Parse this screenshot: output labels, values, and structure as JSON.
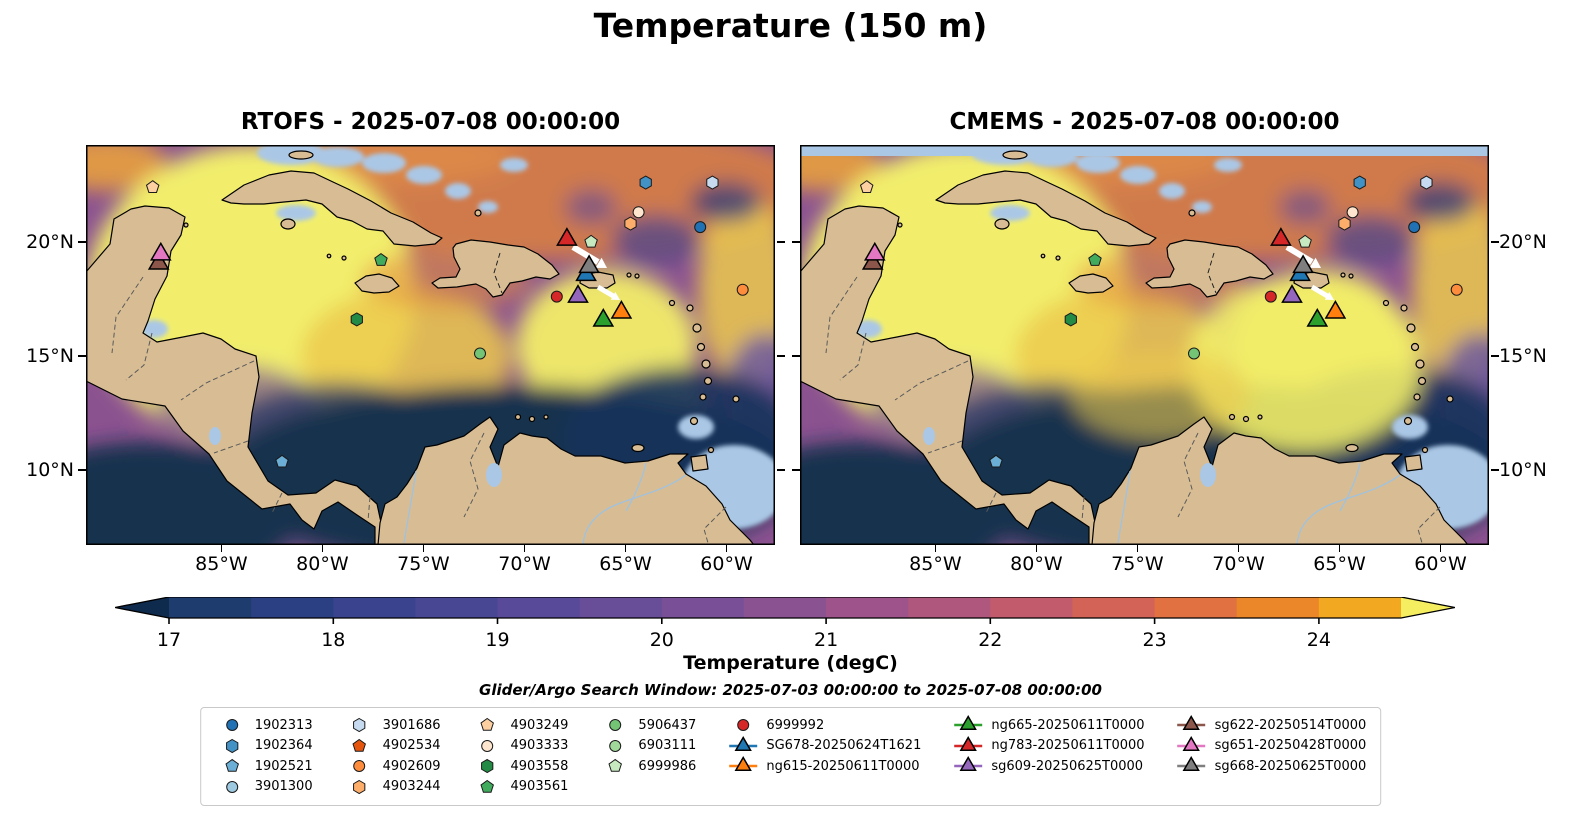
{
  "figure": {
    "title": "Temperature (150 m)",
    "colorbar_label": "Temperature (degC)",
    "search_window": "Glider/Argo Search Window: 2025-07-03 00:00:00 to 2025-07-08 00:00:00"
  },
  "panels": [
    {
      "id": "rtofs",
      "title": "RTOFS - 2025-07-08 00:00:00",
      "ytick_side": "left"
    },
    {
      "id": "cmems",
      "title": "CMEMS - 2025-07-08 00:00:00",
      "ytick_side": "right"
    }
  ],
  "map_extent": {
    "lon_min": -91.7,
    "lon_max": -57.6,
    "lat_min": 6.7,
    "lat_max": 24.25
  },
  "axes": {
    "x_ticks": [
      {
        "label": "85°W",
        "lon": -85
      },
      {
        "label": "80°W",
        "lon": -80
      },
      {
        "label": "75°W",
        "lon": -75
      },
      {
        "label": "70°W",
        "lon": -70
      },
      {
        "label": "65°W",
        "lon": -65
      },
      {
        "label": "60°W",
        "lon": -60
      }
    ],
    "y_ticks": [
      {
        "label": "20°N",
        "lat": 20
      },
      {
        "label": "15°N",
        "lat": 15
      },
      {
        "label": "10°N",
        "lat": 10
      }
    ]
  },
  "colorbar": {
    "vmin": 17,
    "vmax": 24.5,
    "ticks": [
      17,
      18,
      19,
      20,
      21,
      22,
      23,
      24
    ],
    "band_colors": [
      "#1e3d6e",
      "#2a4083",
      "#39438e",
      "#484794",
      "#584a98",
      "#684d99",
      "#795097",
      "#8b5292",
      "#9e548a",
      "#b0577d",
      "#c25c6c",
      "#d36357",
      "#e17141",
      "#ec8729",
      "#f2a821"
    ],
    "extend_left_color": "#0e2a4d",
    "extend_right_color": "#f5ee61"
  },
  "platforms": {
    "1902313": {
      "label": "1902313",
      "shape": "circle",
      "color": "#2171b5"
    },
    "1902364": {
      "label": "1902364",
      "shape": "hexagon",
      "color": "#4292c6"
    },
    "1902521": {
      "label": "1902521",
      "shape": "pentagon",
      "color": "#6baed6"
    },
    "3901300": {
      "label": "3901300",
      "shape": "circle",
      "color": "#9ecae1"
    },
    "3901686": {
      "label": "3901686",
      "shape": "hexagon",
      "color": "#c6dbef"
    },
    "4902534": {
      "label": "4902534",
      "shape": "pentagon",
      "color": "#e6550d"
    },
    "4902609": {
      "label": "4902609",
      "shape": "circle",
      "color": "#fd8d3c"
    },
    "4903244": {
      "label": "4903244",
      "shape": "hexagon",
      "color": "#fdae6b"
    },
    "4903249": {
      "label": "4903249",
      "shape": "pentagon",
      "color": "#fdd0a2"
    },
    "4903333": {
      "label": "4903333",
      "shape": "circle",
      "color": "#fee6ce"
    },
    "4903558": {
      "label": "4903558",
      "shape": "hexagon",
      "color": "#238b45"
    },
    "4903561": {
      "label": "4903561",
      "shape": "pentagon",
      "color": "#41ab5d"
    },
    "5906437": {
      "label": "5906437",
      "shape": "circle",
      "color": "#74c476"
    },
    "6903111": {
      "label": "6903111",
      "shape": "circle",
      "color": "#a1d99b"
    },
    "6999986": {
      "label": "6999986",
      "shape": "pentagon",
      "color": "#c7e9c0"
    },
    "6999992": {
      "label": "6999992",
      "shape": "circle",
      "color": "#d62728"
    },
    "SG678-20250624T1621": {
      "label": "SG678-20250624T1621",
      "shape": "triangle",
      "color": "#1f77b4"
    },
    "ng615-20250611T0000": {
      "label": "ng615-20250611T0000",
      "shape": "triangle",
      "color": "#ff7f0e"
    },
    "ng665-20250611T0000": {
      "label": "ng665-20250611T0000",
      "shape": "triangle",
      "color": "#2ca02c"
    },
    "ng783-20250611T0000": {
      "label": "ng783-20250611T0000",
      "shape": "triangle",
      "color": "#d62728"
    },
    "sg609-20250625T0000": {
      "label": "sg609-20250625T0000",
      "shape": "triangle",
      "color": "#9467bd"
    },
    "sg622-20250514T0000": {
      "label": "sg622-20250514T0000",
      "shape": "triangle",
      "color": "#8c564b"
    },
    "sg651-20250428T0000": {
      "label": "sg651-20250428T0000",
      "shape": "triangle",
      "color": "#e377c2"
    },
    "sg668-20250625T0000": {
      "label": "sg668-20250625T0000",
      "shape": "triangle",
      "color": "#7f7f7f"
    }
  },
  "legend_columns": [
    [
      "1902313",
      "1902364",
      "1902521",
      "3901300"
    ],
    [
      "3901686",
      "4902534",
      "4902609",
      "4903244"
    ],
    [
      "4903249",
      "4903333",
      "4903558",
      "4903561"
    ],
    [
      "5906437",
      "6903111",
      "6999986"
    ],
    [
      "6999992",
      "SG678-20250624T1621",
      "ng615-20250611T0000"
    ],
    [
      "ng665-20250611T0000",
      "ng783-20250611T0000",
      "sg609-20250625T0000"
    ],
    [
      "sg622-20250514T0000",
      "sg651-20250428T0000",
      "sg668-20250625T0000"
    ]
  ],
  "map_markers": [
    {
      "id": "4903249",
      "lon": -88.4,
      "lat": 22.4
    },
    {
      "id": "1902364",
      "lon": -64.0,
      "lat": 22.6
    },
    {
      "id": "3901686",
      "lon": -60.7,
      "lat": 22.6
    },
    {
      "id": "4903333",
      "lon": -64.35,
      "lat": 21.3
    },
    {
      "id": "4903244",
      "lon": -64.75,
      "lat": 20.8
    },
    {
      "id": "1902313",
      "lon": -61.3,
      "lat": 20.65
    },
    {
      "id": "4902609",
      "lon": -59.2,
      "lat": 17.9
    },
    {
      "id": "4903561",
      "lon": -77.1,
      "lat": 19.2
    },
    {
      "id": "4903558",
      "lon": -78.3,
      "lat": 16.6
    },
    {
      "id": "5906437",
      "lon": -72.2,
      "lat": 15.1
    },
    {
      "id": "1902521",
      "lon": -82.0,
      "lat": 10.35
    },
    {
      "id": "6999986",
      "lon": -66.7,
      "lat": 20.0
    },
    {
      "id": "6999992",
      "lon": -68.4,
      "lat": 17.6
    },
    {
      "id": "ng783-20250611T0000",
      "lon": -67.9,
      "lat": 20.1
    },
    {
      "id": "SG678-20250624T1621",
      "lon": -66.95,
      "lat": 18.55
    },
    {
      "id": "sg668-20250625T0000",
      "lon": -66.8,
      "lat": 18.9
    },
    {
      "id": "sg609-20250625T0000",
      "lon": -67.35,
      "lat": 17.6
    },
    {
      "id": "ng665-20250611T0000",
      "lon": -66.1,
      "lat": 16.55
    },
    {
      "id": "ng615-20250611T0000",
      "lon": -65.2,
      "lat": 16.9
    },
    {
      "id": "sg622-20250514T0000",
      "lon": -88.1,
      "lat": 19.05
    },
    {
      "id": "sg651-20250428T0000",
      "lon": -88.0,
      "lat": 19.45
    }
  ],
  "chart_data": [
    {
      "type": "heatmap",
      "model": "RTOFS",
      "title": "RTOFS - 2025-07-08 00:00:00",
      "variable": "Temperature",
      "depth": "150 m",
      "units": "degC",
      "valid_time": "2025-07-08 00:00:00",
      "x_tick_labels": [
        "85°W",
        "80°W",
        "75°W",
        "70°W",
        "65°W",
        "60°W"
      ],
      "y_tick_labels": [
        "20°N",
        "15°N",
        "10°N"
      ],
      "colormap_range": [
        17,
        24.5
      ],
      "colorbar_ticks": [
        17,
        18,
        19,
        20,
        21,
        22,
        23,
        24
      ],
      "colorbar_extended_both_ends": true,
      "overlay": "Glider and Argo float positions (see map_markers)"
    },
    {
      "type": "heatmap",
      "model": "CMEMS",
      "title": "CMEMS - 2025-07-08 00:00:00",
      "variable": "Temperature",
      "depth": "150 m",
      "units": "degC",
      "valid_time": "2025-07-08 00:00:00",
      "x_tick_labels": [
        "85°W",
        "80°W",
        "75°W",
        "70°W",
        "65°W",
        "60°W"
      ],
      "y_tick_labels": [
        "20°N",
        "15°N",
        "10°N"
      ],
      "colormap_range": [
        17,
        24.5
      ],
      "colorbar_ticks": [
        17,
        18,
        19,
        20,
        21,
        22,
        23,
        24
      ],
      "colorbar_extended_both_ends": true,
      "overlay": "Glider and Argo float positions (see map_markers)"
    }
  ]
}
